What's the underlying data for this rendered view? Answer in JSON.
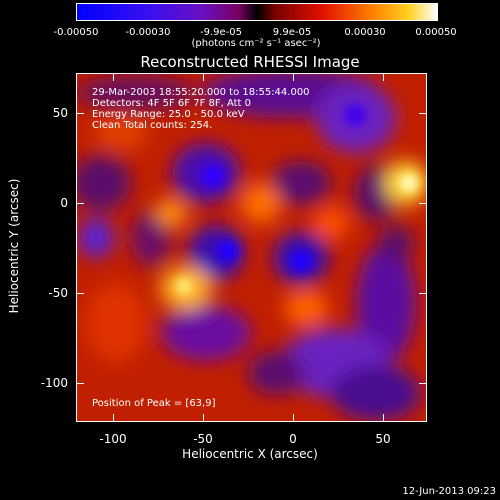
{
  "colorbar": {
    "tick_labels": [
      "-0.00050",
      "-0.00030",
      "-9.9e-05",
      "9.9e-05",
      "0.00030",
      "0.00050"
    ],
    "units": "(photons cm⁻² s⁻¹ asec⁻²)",
    "range": [
      -0.0005,
      0.0005
    ]
  },
  "plot": {
    "title": "Reconstructed RHESSI Image",
    "info_lines": [
      "29-Mar-2003 18:55:20.000 to 18:55:44.000",
      "Detectors: 4F 5F 6F 7F 8F, Att 0",
      "Energy Range: 25.0 - 50.0 keV",
      "Clean    Total counts: 254."
    ],
    "peak_label": "Position of Peak = [63,9]",
    "xlabel": "Heliocentric X (arcsec)",
    "ylabel": "Heliocentric Y (arcsec)",
    "xticks": [
      "-100",
      "-50",
      "0",
      "50"
    ],
    "yticks": [
      "50",
      "0",
      "-50",
      "-100"
    ],
    "xlim": [
      -117,
      77
    ],
    "ylim": [
      -122,
      72
    ]
  },
  "footer": {
    "date": "12-Jun-2013 09:23"
  }
}
